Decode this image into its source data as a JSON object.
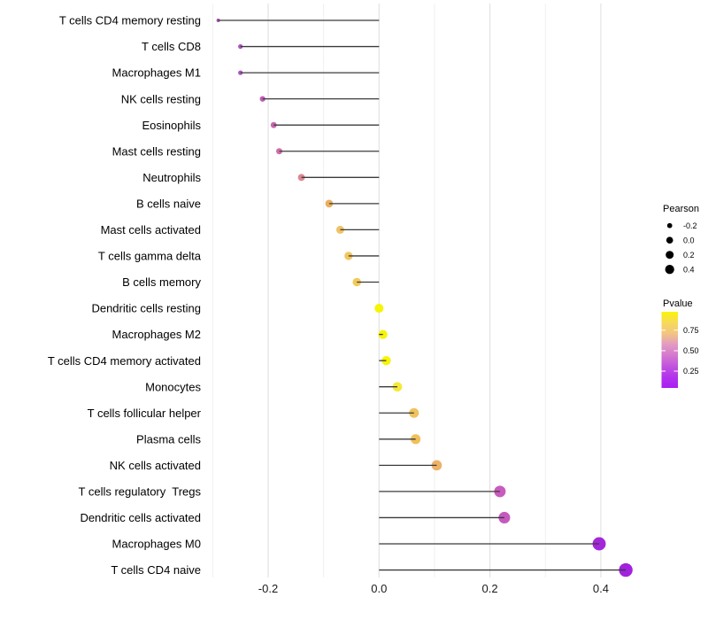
{
  "chart_data": {
    "type": "lollipop",
    "title": "",
    "xlabel": "",
    "ylabel": "",
    "xlim": [
      -0.33,
      0.48
    ],
    "grid": "vertical gridlines every 0.1 from -0.3 to 0.4, light gray on white",
    "x_tick_labels": [
      "-0.2",
      "0.0",
      "0.2",
      "0.4"
    ],
    "x_tick_values": [
      -0.2,
      0.0,
      0.2,
      0.4
    ],
    "baseline": 0.0,
    "points": [
      {
        "label": "T cells CD4 memory resting",
        "pearson": -0.29,
        "color": "#A84DB5"
      },
      {
        "label": "T cells CD8",
        "pearson": -0.25,
        "color": "#B156C4"
      },
      {
        "label": "Macrophages M1",
        "pearson": -0.25,
        "color": "#B156C4"
      },
      {
        "label": "NK cells resting",
        "pearson": -0.21,
        "color": "#C05CB8"
      },
      {
        "label": "Eosinophils",
        "pearson": -0.19,
        "color": "#C966AE"
      },
      {
        "label": "Mast cells resting",
        "pearson": -0.18,
        "color": "#CE6FA8"
      },
      {
        "label": "Neutrophils",
        "pearson": -0.14,
        "color": "#DB8890"
      },
      {
        "label": "B cells naive",
        "pearson": -0.09,
        "color": "#EBAF5E"
      },
      {
        "label": "Mast cells activated",
        "pearson": -0.07,
        "color": "#EFC366"
      },
      {
        "label": "T cells gamma delta",
        "pearson": -0.055,
        "color": "#F1C75F"
      },
      {
        "label": "B cells memory",
        "pearson": -0.04,
        "color": "#F2CA5B"
      },
      {
        "label": "Dendritic cells resting",
        "pearson": 0.0,
        "color": "#F6F407"
      },
      {
        "label": "Macrophages M2",
        "pearson": 0.007,
        "color": "#F6F40A"
      },
      {
        "label": "T cells CD4 memory activated",
        "pearson": 0.013,
        "color": "#F7F407"
      },
      {
        "label": "Monocytes",
        "pearson": 0.033,
        "color": "#F6E83A"
      },
      {
        "label": "T cells follicular helper",
        "pearson": 0.063,
        "color": "#EFC25E"
      },
      {
        "label": "Plasma cells",
        "pearson": 0.066,
        "color": "#EFC05A"
      },
      {
        "label": "NK cells activated",
        "pearson": 0.104,
        "color": "#EDB169"
      },
      {
        "label": "T cells regulatory  Tregs",
        "pearson": 0.218,
        "color": "#C75CBE"
      },
      {
        "label": "Dendritic cells activated",
        "pearson": 0.226,
        "color": "#C55ABE"
      },
      {
        "label": "Macrophages M0",
        "pearson": 0.397,
        "color": "#A327DA"
      },
      {
        "label": "T cells CD4 naive",
        "pearson": 0.445,
        "color": "#A221DE"
      }
    ],
    "legend_position": "right"
  },
  "legends": {
    "size": {
      "title": "Pearson",
      "entries": [
        {
          "label": "-0.2",
          "diameter": 5.7
        },
        {
          "label": "0.0",
          "diameter": 7.7
        },
        {
          "label": "0.2",
          "diameter": 9.0
        },
        {
          "label": "0.4",
          "diameter": 10.3
        }
      ],
      "dot_color": "#000000"
    },
    "color": {
      "title": "Pvalue",
      "tick_labels": [
        "0.75",
        "0.50",
        "0.25"
      ],
      "gradient_top_to_bottom": [
        "#FAF405",
        "#F6DA5C",
        "#F2C581",
        "#E29BC0",
        "#D478CE",
        "#C153DE",
        "#B232EC",
        "#A81EF4"
      ]
    }
  },
  "colors": {
    "background": "#FFFFFF",
    "stick": "#3B3B3B",
    "grid_major": "#E3E3E3",
    "grid_minor": "#EFEFEF",
    "axis_text": "#1A1A1A"
  }
}
